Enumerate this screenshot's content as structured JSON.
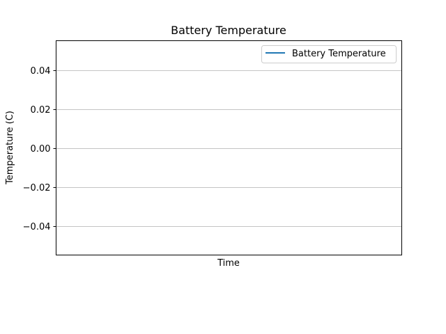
{
  "chart_data": {
    "type": "line",
    "title": "Battery Temperature",
    "xlabel": "Time",
    "ylabel": "Temperature (C)",
    "ylim": [
      -0.055,
      0.055
    ],
    "yticks": [
      0.04,
      0.02,
      0.0,
      -0.02,
      -0.04
    ],
    "ytick_labels": [
      "0.04",
      "0.02",
      "0.00",
      "−0.02",
      "−0.04"
    ],
    "xticks": [],
    "grid": {
      "y": true,
      "x": false
    },
    "legend": {
      "position": "top-right"
    },
    "series": [
      {
        "name": "Battery Temperature",
        "color": "#1f77b4",
        "x": [],
        "y": []
      }
    ]
  }
}
